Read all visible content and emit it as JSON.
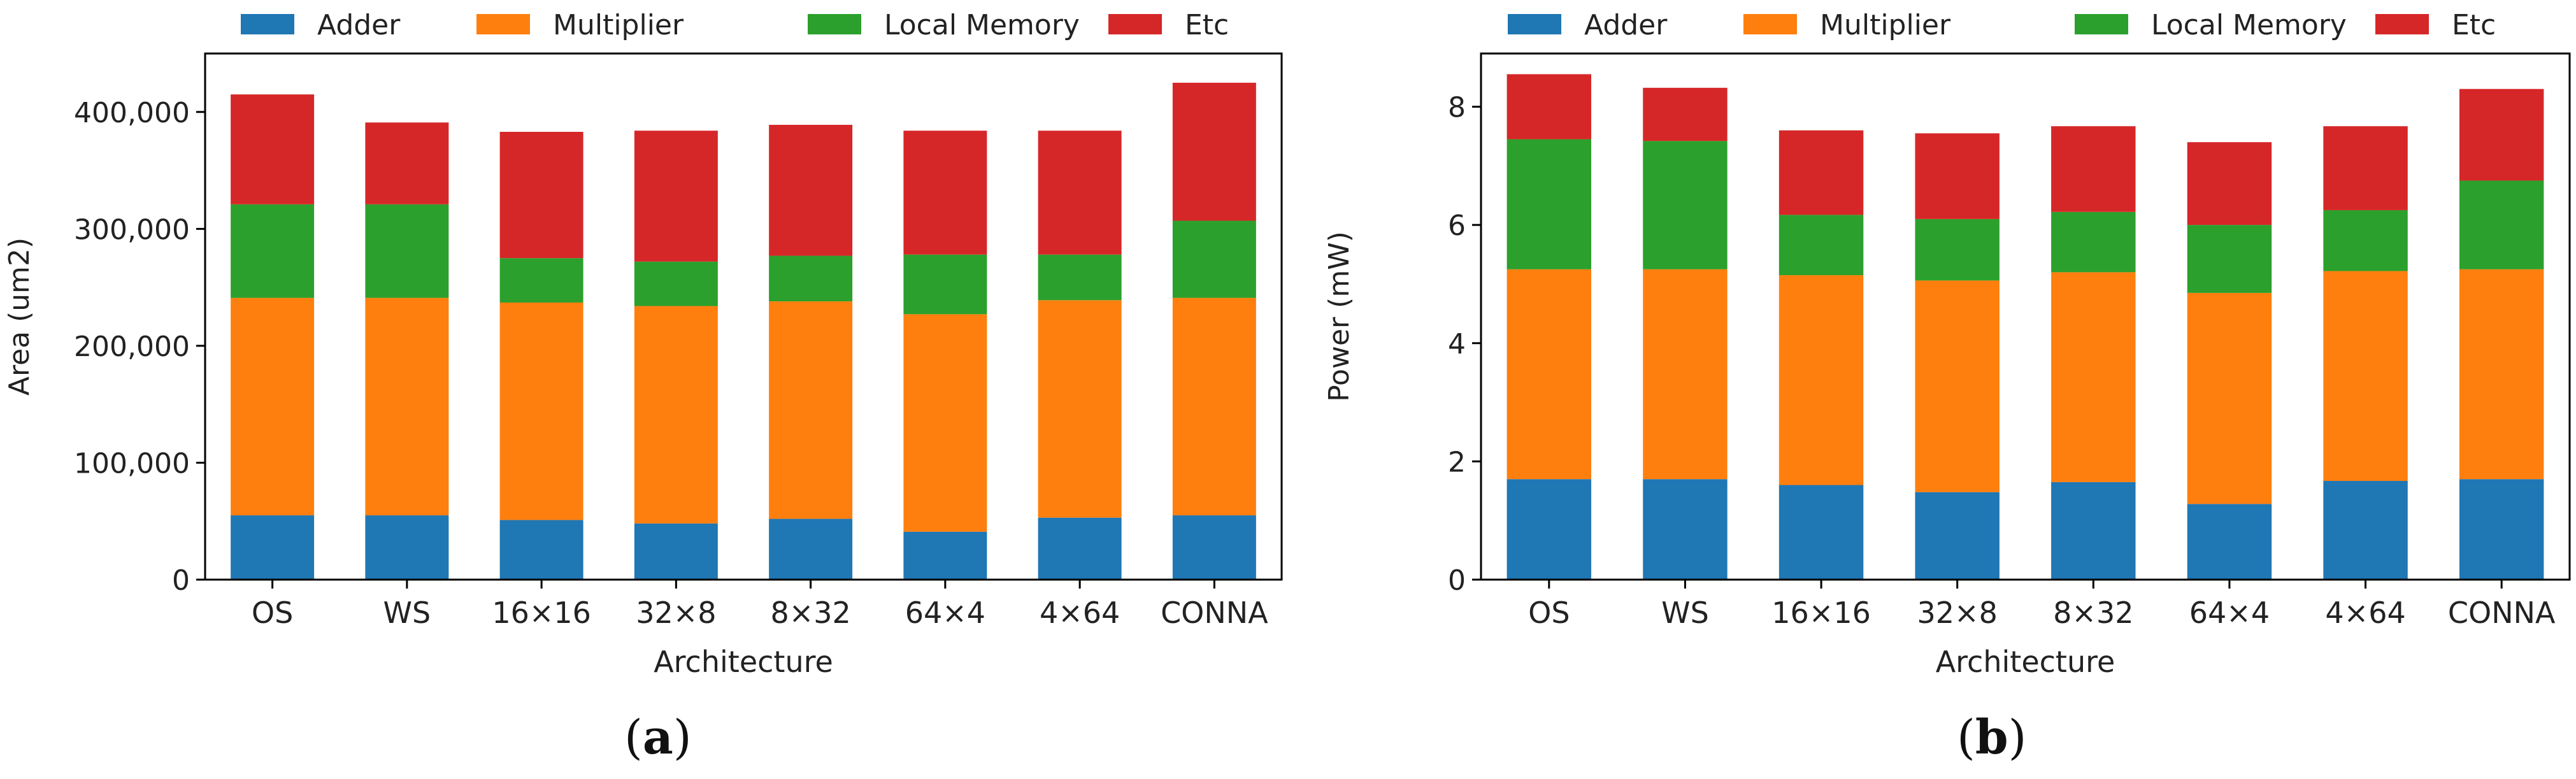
{
  "legend_labels": [
    "Adder",
    "Multiplier",
    "Local Memory",
    "Etc"
  ],
  "colors": [
    "#1f77b4",
    "#ff7f0e",
    "#2ca02c",
    "#d62728"
  ],
  "chart_data": [
    {
      "type": "bar",
      "stacked": true,
      "panel_label": "a",
      "xlabel": "Architecture",
      "ylabel": "Area (um2)",
      "ylim": [
        0,
        450000
      ],
      "yticks": [
        0,
        100000,
        200000,
        300000,
        400000
      ],
      "ytick_labels": [
        "0",
        "100,000",
        "200,000",
        "300,000",
        "400,000"
      ],
      "categories": [
        "OS",
        "WS",
        "16×16",
        "32×8",
        "8×32",
        "64×4",
        "4×64",
        "CONNA"
      ],
      "series": [
        {
          "name": "Adder",
          "values": [
            55000,
            55000,
            51000,
            48000,
            52000,
            41000,
            53000,
            55000
          ]
        },
        {
          "name": "Multiplier",
          "values": [
            186000,
            186000,
            186000,
            186000,
            186000,
            186000,
            186000,
            186000
          ]
        },
        {
          "name": "Local Memory",
          "values": [
            80000,
            80000,
            38000,
            38000,
            39000,
            51000,
            39000,
            66000
          ]
        },
        {
          "name": "Etc",
          "values": [
            94000,
            70000,
            108000,
            112000,
            112000,
            106000,
            106000,
            118000
          ]
        }
      ]
    },
    {
      "type": "bar",
      "stacked": true,
      "panel_label": "b",
      "xlabel": "Architecture",
      "ylabel": "Power (mW)",
      "ylim": [
        0,
        8.9
      ],
      "yticks": [
        0,
        2,
        4,
        6,
        8
      ],
      "ytick_labels": [
        "0",
        "2",
        "4",
        "6",
        "8"
      ],
      "categories": [
        "OS",
        "WS",
        "16×16",
        "32×8",
        "8×32",
        "64×4",
        "4×64",
        "CONNA"
      ],
      "series": [
        {
          "name": "Adder",
          "values": [
            1.7,
            1.7,
            1.6,
            1.48,
            1.65,
            1.28,
            1.67,
            1.7
          ]
        },
        {
          "name": "Multiplier",
          "values": [
            3.55,
            3.55,
            3.55,
            3.58,
            3.55,
            3.57,
            3.55,
            3.55
          ]
        },
        {
          "name": "Local Memory",
          "values": [
            2.2,
            2.17,
            1.02,
            1.04,
            1.02,
            1.15,
            1.03,
            1.5
          ]
        },
        {
          "name": "Etc",
          "values": [
            1.1,
            0.9,
            1.43,
            1.45,
            1.45,
            1.4,
            1.42,
            1.55
          ]
        }
      ]
    }
  ]
}
